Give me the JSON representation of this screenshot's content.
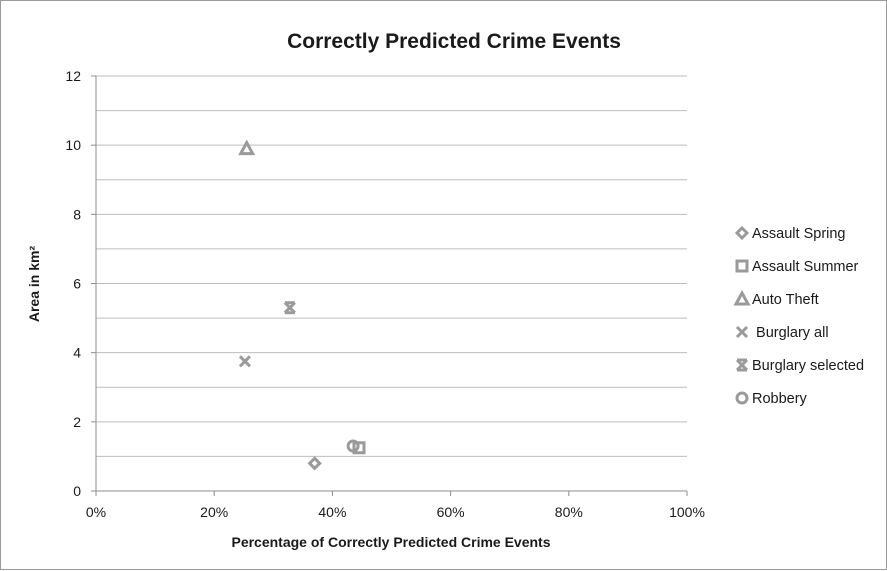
{
  "chart_data": {
    "type": "scatter",
    "title": "Correctly Predicted Crime Events",
    "xlabel": "Percentage of Correctly Predicted Crime Events",
    "ylabel": "Area in km²",
    "xlim": [
      0,
      100
    ],
    "ylim": [
      0,
      12
    ],
    "x_ticks": [
      0,
      20,
      40,
      60,
      80,
      100
    ],
    "x_tick_labels": [
      "0%",
      "20%",
      "40%",
      "60%",
      "80%",
      "100%"
    ],
    "y_ticks": [
      0,
      2,
      4,
      6,
      8,
      10,
      12
    ],
    "y_tick_labels": [
      "0",
      "2",
      "4",
      "6",
      "8",
      "10",
      "12"
    ],
    "grid": "horizontal",
    "legend_position": "right",
    "series": [
      {
        "name": "Assault Spring",
        "marker": "diamond",
        "x": [
          37
        ],
        "y": [
          0.8
        ]
      },
      {
        "name": "Assault Summer",
        "marker": "square",
        "x": [
          44.5
        ],
        "y": [
          1.25
        ]
      },
      {
        "name": "Auto Theft",
        "marker": "triangle",
        "x": [
          25.5
        ],
        "y": [
          9.9
        ]
      },
      {
        "name": " Burglary all",
        "marker": "x",
        "x": [
          25.2
        ],
        "y": [
          3.75
        ]
      },
      {
        "name": "Burglary selected",
        "marker": "star",
        "x": [
          32.8
        ],
        "y": [
          5.3
        ]
      },
      {
        "name": "Robbery",
        "marker": "circle",
        "x": [
          43.5
        ],
        "y": [
          1.3
        ]
      }
    ]
  },
  "colors": {
    "marker": "#9a9a9a",
    "grid": "#bdbdbd",
    "text": "#1a1a1a"
  }
}
